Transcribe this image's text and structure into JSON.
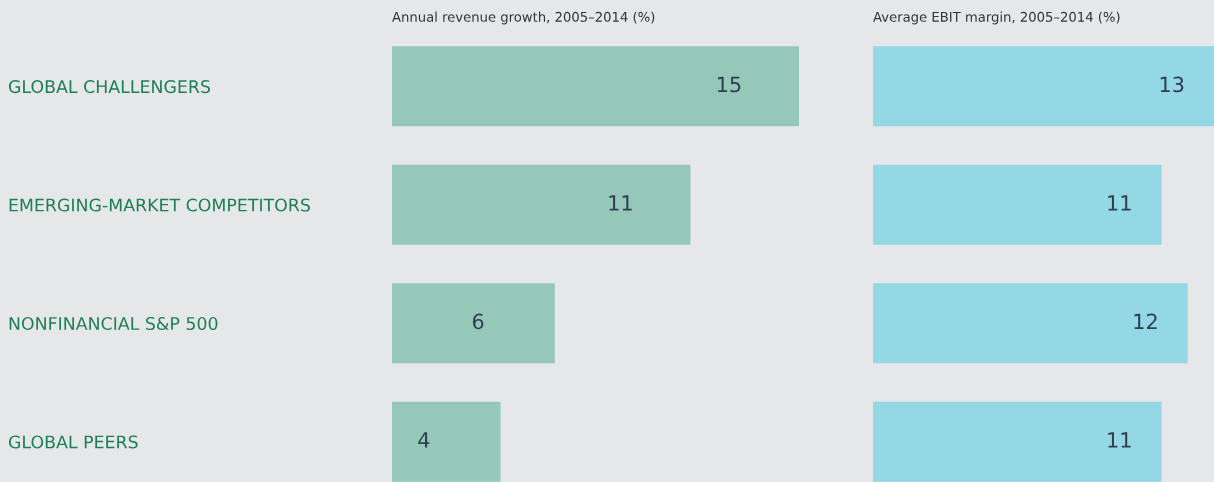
{
  "chart_data": [
    {
      "type": "bar",
      "orientation": "horizontal",
      "title": "Annual revenue growth, 2005–2014 (%)",
      "categories": [
        "GLOBAL CHALLENGERS",
        "EMERGING-MARKET COMPETITORS",
        "NONFINANCIAL S&P 500",
        "GLOBAL PEERS"
      ],
      "values": [
        15,
        11,
        6,
        4
      ],
      "color": "#95c8b9",
      "data_labels": true,
      "tick_labels": "y",
      "grid": false,
      "legend": false
    },
    {
      "type": "bar",
      "orientation": "horizontal",
      "title": "Average EBIT margin, 2005–2014 (%)",
      "categories": [
        null,
        null,
        null,
        null
      ],
      "values": [
        13,
        11,
        12,
        11
      ],
      "color": "#93d8e4",
      "data_labels": true,
      "tick_labels": false,
      "grid": false,
      "legend": false
    }
  ]
}
